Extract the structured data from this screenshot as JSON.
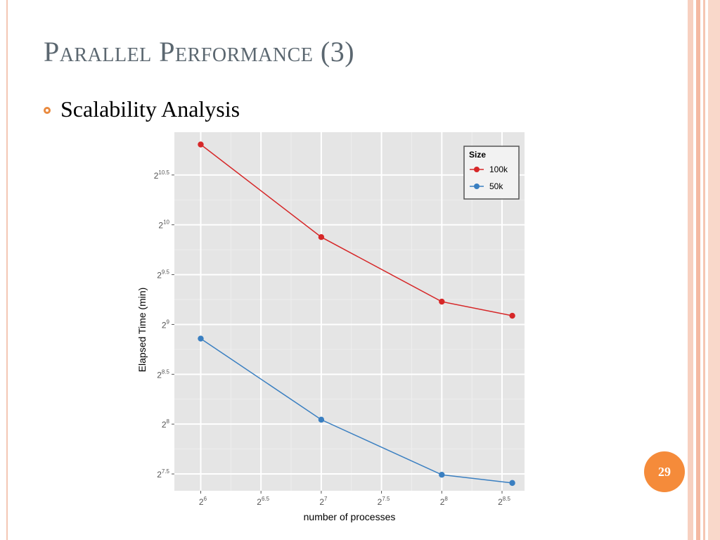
{
  "slide": {
    "title": "Parallel Performance (3)",
    "bullet": "Scalability Analysis",
    "page_number": "29"
  },
  "colors": {
    "title": "#5b6770",
    "accent": "#f58b3a",
    "bullet": "#e98a3f",
    "decor": "#f4c7b4",
    "panel": "#e5e5e5",
    "series_100k": "#d62728",
    "series_50k": "#3a7fc1"
  },
  "chart_data": {
    "type": "line",
    "xlabel": "number of processes",
    "ylabel": "Elapsed Time (min)",
    "x_scale": "log2",
    "y_scale": "log2",
    "x_ticks": [
      {
        "base": "2",
        "exp": "6",
        "value": 64
      },
      {
        "base": "2",
        "exp": "6.5",
        "value": 90.5
      },
      {
        "base": "2",
        "exp": "7",
        "value": 128
      },
      {
        "base": "2",
        "exp": "7.5",
        "value": 181
      },
      {
        "base": "2",
        "exp": "8",
        "value": 256
      },
      {
        "base": "2",
        "exp": "8.5",
        "value": 362
      }
    ],
    "y_ticks": [
      {
        "base": "2",
        "exp": "7.5",
        "value": 181
      },
      {
        "base": "2",
        "exp": "8",
        "value": 256
      },
      {
        "base": "2",
        "exp": "8.5",
        "value": 362
      },
      {
        "base": "2",
        "exp": "9",
        "value": 512
      },
      {
        "base": "2",
        "exp": "9.5",
        "value": 724
      },
      {
        "base": "2",
        "exp": "10",
        "value": 1024
      },
      {
        "base": "2",
        "exp": "10.5",
        "value": 1448
      }
    ],
    "xlim": [
      55,
      412
    ],
    "ylim": [
      161,
      1950
    ],
    "legend": {
      "title": "Size",
      "position": "top-right"
    },
    "series": [
      {
        "name": "100k",
        "color": "#d62728",
        "x": [
          64,
          128,
          256,
          384
        ],
        "y": [
          1790,
          940,
          600,
          544
        ]
      },
      {
        "name": "50k",
        "color": "#3a7fc1",
        "x": [
          64,
          128,
          256,
          384
        ],
        "y": [
          464,
          264,
          180,
          170
        ]
      }
    ],
    "grid": true
  }
}
